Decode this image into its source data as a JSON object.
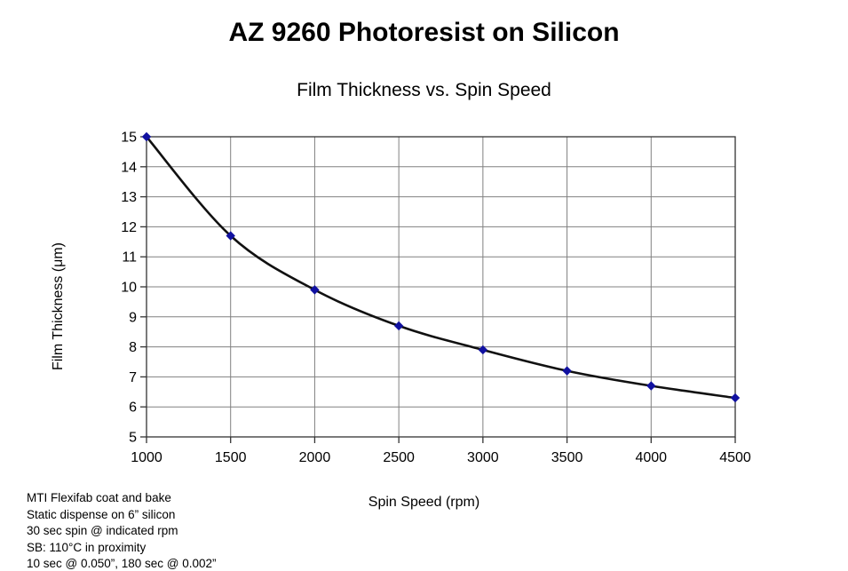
{
  "chart_data": {
    "type": "line",
    "title": "AZ 9260 Photoresist on Silicon",
    "subtitle": "Film Thickness vs. Spin Speed",
    "xlabel": "Spin Speed (rpm)",
    "ylabel": "Film Thickness (μm)",
    "x": [
      1000,
      1500,
      2000,
      2500,
      3000,
      3500,
      4000,
      4500
    ],
    "y": [
      15.0,
      11.7,
      9.9,
      8.7,
      7.9,
      7.2,
      6.7,
      6.3
    ],
    "xlim": [
      1000,
      4500
    ],
    "ylim": [
      5,
      15
    ],
    "xtick_step": 500,
    "ytick_step": 1,
    "grid": true,
    "legend": "none",
    "line_color": "#111111",
    "marker": "diamond",
    "marker_color": "#1111A0",
    "gridline_color": "#808080",
    "axis_color": "#333333"
  },
  "footnotes": [
    "MTI Flexifab coat and bake",
    "Static dispense on 6” silicon",
    "30 sec spin @ indicated rpm",
    "SB: 110°C in proximity",
    "10 sec @ 0.050”, 180 sec @ 0.002”"
  ]
}
